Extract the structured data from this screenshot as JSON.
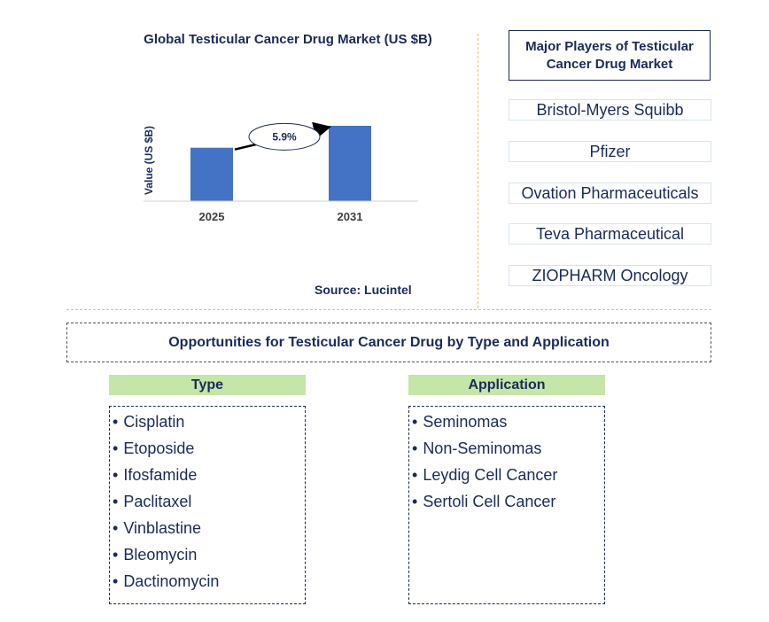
{
  "chart_data": {
    "type": "bar",
    "title": "Global Testicular Cancer Drug Market (US $B)",
    "xlabel": "",
    "ylabel": "Value (US $B)",
    "categories": [
      "2025",
      "2031"
    ],
    "values": [
      1.0,
      1.41
    ],
    "growth_label": "5.9%",
    "bar_color": "#4472c4",
    "grid": false
  },
  "source": "Source: Lucintel",
  "players": {
    "title": "Major Players of Testicular Cancer Drug Market",
    "items": [
      "Bristol-Myers Squibb",
      "Pfizer",
      "Ovation Pharmaceuticals",
      "Teva Pharmaceutical",
      "ZIOPHARM Oncology"
    ]
  },
  "opportunities": {
    "title": "Opportunities for Testicular Cancer Drug by Type and Application",
    "type": {
      "header": "Type",
      "items": [
        "Cisplatin",
        "Etoposide",
        "Ifosfamide",
        "Paclitaxel",
        "Vinblastine",
        "Bleomycin",
        "Dactinomycin"
      ]
    },
    "application": {
      "header": "Application",
      "items": [
        "Seminomas",
        "Non-Seminomas",
        "Leydig Cell Cancer",
        "Sertoli Cell Cancer"
      ]
    }
  }
}
